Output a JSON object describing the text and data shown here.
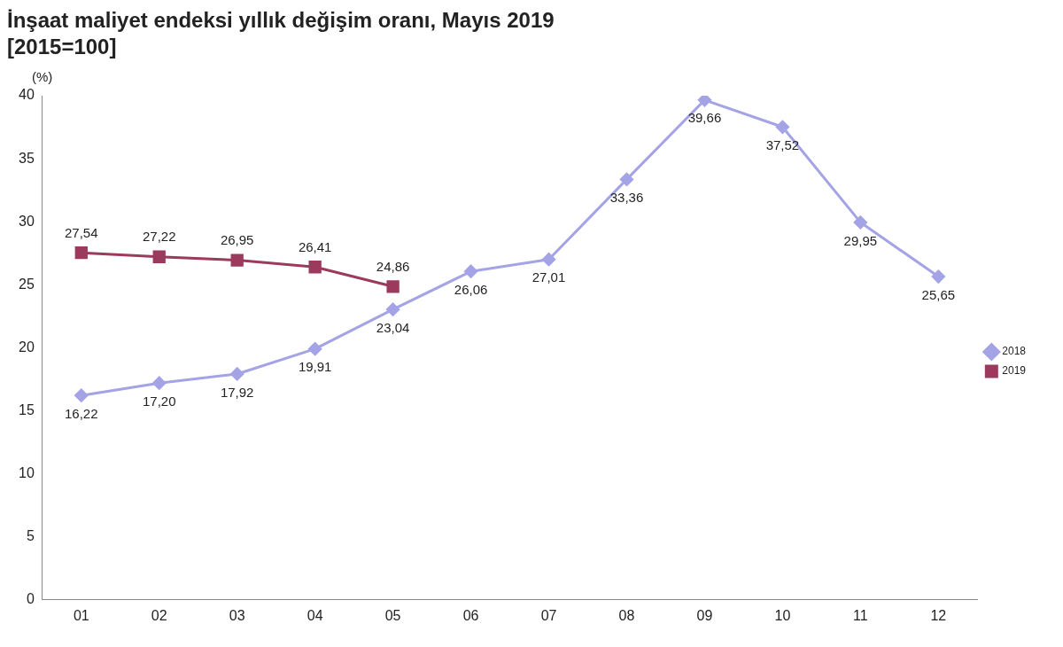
{
  "chart_data": {
    "type": "line",
    "title": "İnşaat maliyet endeksi yıllık değişim oranı, Mayıs 2019",
    "subtitle": "[2015=100]",
    "ylabel": "(%)",
    "categories": [
      "01",
      "02",
      "03",
      "04",
      "05",
      "06",
      "07",
      "08",
      "09",
      "10",
      "11",
      "12"
    ],
    "series": [
      {
        "name": "2018",
        "color": "#a3a3e6",
        "marker": "diamond",
        "values": [
          16.22,
          17.2,
          17.92,
          19.91,
          23.04,
          26.06,
          27.01,
          33.36,
          39.66,
          37.52,
          29.95,
          25.65
        ],
        "value_labels": [
          "16,22",
          "17,20",
          "17,92",
          "19,91",
          "23,04",
          "26,06",
          "27,01",
          "33,36",
          "39,66",
          "37,52",
          "29,95",
          "25,65"
        ]
      },
      {
        "name": "2019",
        "color": "#9b3a5c",
        "marker": "square",
        "values": [
          27.54,
          27.22,
          26.95,
          26.41,
          24.86,
          null,
          null,
          null,
          null,
          null,
          null,
          null
        ],
        "value_labels": [
          "27,54",
          "27,22",
          "26,95",
          "26,41",
          "24,86",
          null,
          null,
          null,
          null,
          null,
          null,
          null
        ]
      }
    ],
    "ylim": [
      0,
      40
    ],
    "yticks": [
      0,
      5,
      10,
      15,
      20,
      25,
      30,
      35,
      40
    ],
    "grid": false,
    "legend": "right"
  }
}
